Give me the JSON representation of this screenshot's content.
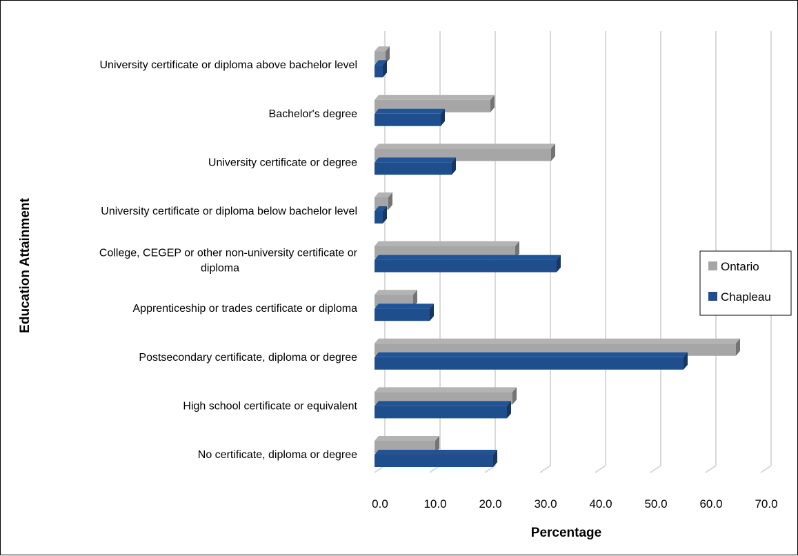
{
  "chart_data": {
    "type": "bar",
    "orientation": "horizontal",
    "categories": [
      "No certificate, diploma or degree",
      "High school certificate or equivalent",
      "Postsecondary certificate, diploma or degree",
      "Apprenticeship or trades certificate or diploma",
      "College, CEGEP or other non-university certificate or diploma",
      "University certificate or diploma below bachelor level",
      "University certificate or degree",
      "Bachelor's degree",
      "University certificate or diploma above bachelor level"
    ],
    "series": [
      {
        "name": "Ontario",
        "color": "#a6a6a6",
        "values": [
          11.0,
          25.0,
          65.5,
          7.0,
          25.5,
          2.5,
          32.0,
          21.0,
          2.0
        ]
      },
      {
        "name": "Chapleau",
        "color": "#1f4e8c",
        "values": [
          21.5,
          24.0,
          56.0,
          10.0,
          33.0,
          1.5,
          14.0,
          12.0,
          1.5
        ]
      }
    ],
    "xlim": [
      0,
      70
    ],
    "xticks": [
      "0.0",
      "10.0",
      "20.0",
      "30.0",
      "40.0",
      "50.0",
      "60.0",
      "70.0"
    ],
    "xlabel": "Percentage",
    "ylabel": "Education Attainment",
    "grid": true,
    "legend": "right"
  }
}
